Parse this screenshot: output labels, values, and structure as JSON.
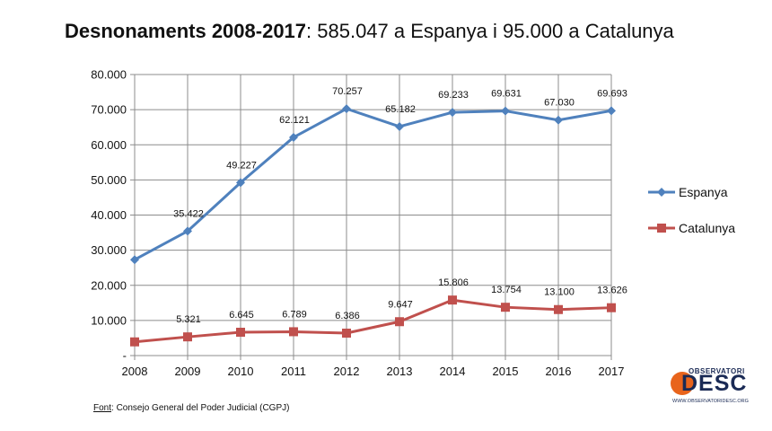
{
  "header": {
    "title_bold": "Desnonaments 2008-2017",
    "title_rest": ": 585.047 a Espanya i 95.000 a Catalunya"
  },
  "footer": {
    "source_label": "Font",
    "source_text": ": Consejo General del Poder Judicial (CGPJ)"
  },
  "logo": {
    "top_text": "OBSERVATORI",
    "main_text": "DESC",
    "url": "WWW.OBSERVATORIDESC.ORG"
  },
  "chart_data": {
    "type": "line",
    "title": "Desnonaments 2008-2017: 585.047 a Espanya i 95.000 a Catalunya",
    "categories": [
      "2008",
      "2009",
      "2010",
      "2011",
      "2012",
      "2013",
      "2014",
      "2015",
      "2016",
      "2017"
    ],
    "ylim": [
      0,
      80000
    ],
    "yticks": [
      0,
      10000,
      20000,
      30000,
      40000,
      50000,
      60000,
      70000,
      80000
    ],
    "ytick_labels": [
      "-",
      "10.000",
      "20.000",
      "30.000",
      "40.000",
      "50.000",
      "60.000",
      "70.000",
      "80.000"
    ],
    "grid": "vertical and horizontal",
    "legend_position": "right",
    "series": [
      {
        "name": "Espanya",
        "color": "#4f81bd",
        "marker": "diamond",
        "values": [
          27300,
          35422,
          49227,
          62121,
          70257,
          65182,
          69233,
          69631,
          67030,
          69693
        ],
        "labels": [
          "",
          "35.422",
          "49.227",
          "62.121",
          "70.257",
          "65.182",
          "69.233",
          "69.631",
          "67.030",
          "69.693"
        ]
      },
      {
        "name": "Catalunya",
        "color": "#c0504d",
        "marker": "square",
        "values": [
          3900,
          5321,
          6645,
          6789,
          6386,
          9647,
          15806,
          13754,
          13100,
          13626
        ],
        "labels": [
          "",
          "5.321",
          "6.645",
          "6.789",
          "6.386",
          "9.647",
          "15.806",
          "13.754",
          "13.100",
          "13.626"
        ]
      }
    ]
  }
}
